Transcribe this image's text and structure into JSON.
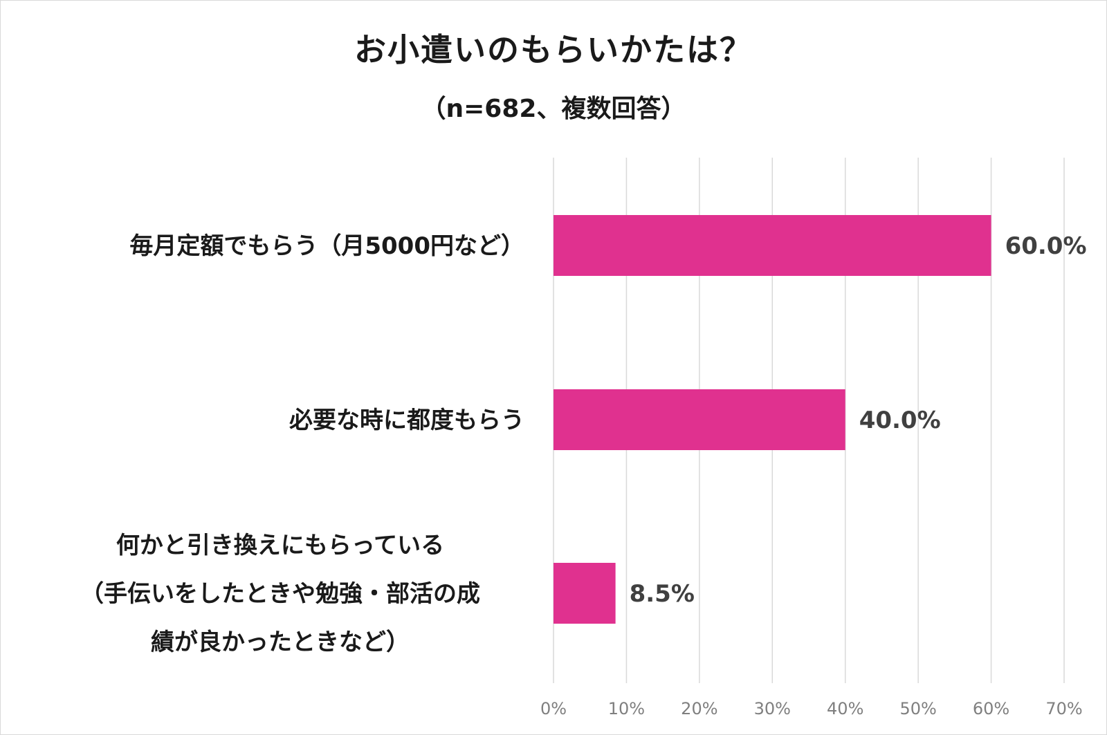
{
  "chart_data": {
    "type": "bar",
    "orientation": "horizontal",
    "title": "お小遣いのもらいかたは？",
    "subtitle": "（n=682、複数回答）",
    "categories": [
      [
        "毎月定額でもらう（月5000円など）"
      ],
      [
        "必要な時に都度もらう"
      ],
      [
        "何かと引き換えにもらっている",
        "（手伝いをしたときや勉強・部活の成",
        "績が良かったときなど）"
      ]
    ],
    "values": [
      60.0,
      40.0,
      8.5
    ],
    "data_labels": [
      "60.0%",
      "40.0%",
      "8.5%"
    ],
    "xlim": [
      0,
      70
    ],
    "ticks": [
      0,
      10,
      20,
      30,
      40,
      50,
      60,
      70
    ],
    "tick_labels": [
      "0%",
      "10%",
      "20%",
      "30%",
      "40%",
      "50%",
      "60%",
      "70%"
    ],
    "grid": true,
    "bar_color": "#e0318f",
    "grid_color": "#d9d9d9"
  }
}
